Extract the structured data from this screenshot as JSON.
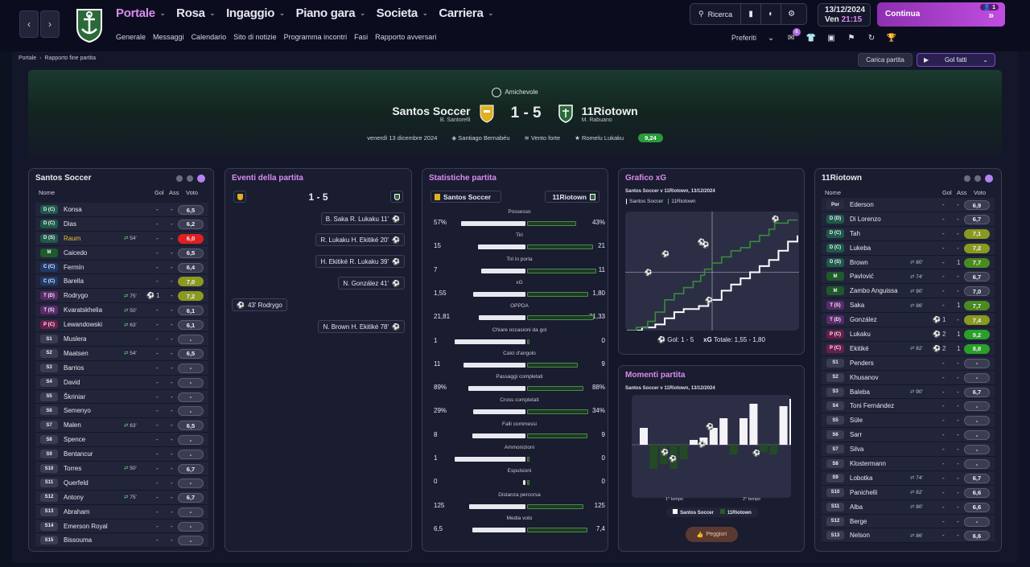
{
  "nav": {
    "menu": [
      {
        "label": "Portale",
        "active": true
      },
      {
        "label": "Rosa"
      },
      {
        "label": "Ingaggio"
      },
      {
        "label": "Piano gara"
      },
      {
        "label": "Societa"
      },
      {
        "label": "Carriera"
      }
    ],
    "submenu": [
      "Generale",
      "Messaggi",
      "Calendario",
      "Sito di notizie",
      "Programma incontri",
      "Fasi",
      "Rapporto avversari"
    ],
    "search": "Ricerca",
    "date": "13/12/2024",
    "day": "Ven",
    "time": "21:15",
    "continue": "Continua",
    "continue_badge": "1",
    "favorites": "Preferiti",
    "fav_badge": "6"
  },
  "breadcrumb": [
    "Portale",
    "Rapporto fine partita"
  ],
  "actions": {
    "load": "Carica partita",
    "goals": "Gol fatti"
  },
  "match": {
    "competition": "Amichevole",
    "home": "Santos Soccer",
    "home_manager": "B. Santorelli",
    "away": "11Riotown",
    "away_manager": "M. Rabuano",
    "score": "1 - 5",
    "date": "venerdì 13 dicembre 2024",
    "stadium": "Santiago Bernabéu",
    "weather": "Vento forte",
    "potm": "Romelu Lukaku",
    "potm_rating": "9,24"
  },
  "home_panel": {
    "title": "Santos Soccer",
    "headers": {
      "name": "Nome",
      "goals": "Gol",
      "assists": "Ass",
      "rating": "Voto"
    },
    "players": [
      {
        "pos": "D (C)",
        "pc": "#1e5a4a",
        "name": "Konsa",
        "sub": "",
        "g": "-",
        "a": "-",
        "r": "6,5",
        "rc": "#3a3d52"
      },
      {
        "pos": "D (C)",
        "pc": "#1e5a4a",
        "name": "Dias",
        "sub": "",
        "g": "-",
        "a": "-",
        "r": "6,2",
        "rc": "#3a3d52"
      },
      {
        "pos": "D (S)",
        "pc": "#1e5a4a",
        "name": "Raum",
        "nc": "#f0c030",
        "sub": "54'",
        "g": "-",
        "a": "-",
        "r": "6,0",
        "rc": "#e02020"
      },
      {
        "pos": "M",
        "pc": "#1e5a2a",
        "name": "Caicedo",
        "sub": "",
        "g": "-",
        "a": "-",
        "r": "6,5",
        "rc": "#3a3d52"
      },
      {
        "pos": "C (C)",
        "pc": "#1e3a6a",
        "name": "Fermín",
        "sub": "",
        "g": "-",
        "a": "-",
        "r": "6,4",
        "rc": "#3a3d52"
      },
      {
        "pos": "C (C)",
        "pc": "#1e3a6a",
        "name": "Barella",
        "sub": "",
        "g": "-",
        "a": "-",
        "r": "7,0",
        "rc": "#8a9a20"
      },
      {
        "pos": "T (D)",
        "pc": "#5a2a6a",
        "name": "Rodrygo",
        "sub": "75'",
        "goal": true,
        "g": "1",
        "a": "-",
        "r": "7,2",
        "rc": "#8a9a20"
      },
      {
        "pos": "T (S)",
        "pc": "#5a2a6a",
        "name": "Kvaratskhelia",
        "sub": "50'",
        "g": "-",
        "a": "-",
        "r": "6,1",
        "rc": "#3a3d52"
      },
      {
        "pos": "P (C)",
        "pc": "#6a1e4a",
        "name": "Lewandowski",
        "sub": "63'",
        "g": "-",
        "a": "-",
        "r": "6,1",
        "rc": "#3a3d52"
      },
      {
        "pos": "S1",
        "pc": "#3a3d52",
        "name": "Muslera",
        "sub": "",
        "g": "-",
        "a": "-",
        "r": "-",
        "rc": "#3a3d52"
      },
      {
        "pos": "S2",
        "pc": "#3a3d52",
        "name": "Maatsen",
        "sub": "54'",
        "g": "-",
        "a": "-",
        "r": "6,5",
        "rc": "#3a3d52"
      },
      {
        "pos": "S3",
        "pc": "#3a3d52",
        "name": "Barrios",
        "sub": "",
        "g": "-",
        "a": "-",
        "r": "-",
        "rc": "#3a3d52"
      },
      {
        "pos": "S4",
        "pc": "#3a3d52",
        "name": "David",
        "sub": "",
        "g": "-",
        "a": "-",
        "r": "-",
        "rc": "#3a3d52"
      },
      {
        "pos": "S5",
        "pc": "#3a3d52",
        "name": "Škriniar",
        "sub": "",
        "g": "-",
        "a": "-",
        "r": "-",
        "rc": "#3a3d52"
      },
      {
        "pos": "S6",
        "pc": "#3a3d52",
        "name": "Semenyo",
        "sub": "",
        "g": "-",
        "a": "-",
        "r": "-",
        "rc": "#3a3d52"
      },
      {
        "pos": "S7",
        "pc": "#3a3d52",
        "name": "Malen",
        "sub": "63'",
        "g": "-",
        "a": "-",
        "r": "6,5",
        "rc": "#3a3d52"
      },
      {
        "pos": "S8",
        "pc": "#3a3d52",
        "name": "Spence",
        "sub": "",
        "g": "-",
        "a": "-",
        "r": "-",
        "rc": "#3a3d52"
      },
      {
        "pos": "S9",
        "pc": "#3a3d52",
        "name": "Bentancur",
        "sub": "",
        "g": "-",
        "a": "-",
        "r": "-",
        "rc": "#3a3d52"
      },
      {
        "pos": "S10",
        "pc": "#3a3d52",
        "name": "Torres",
        "sub": "50'",
        "g": "-",
        "a": "-",
        "r": "6,7",
        "rc": "#3a3d52"
      },
      {
        "pos": "S11",
        "pc": "#3a3d52",
        "name": "Querfeld",
        "sub": "",
        "g": "-",
        "a": "-",
        "r": "-",
        "rc": "#3a3d52"
      },
      {
        "pos": "S12",
        "pc": "#3a3d52",
        "name": "Antony",
        "sub": "75'",
        "g": "-",
        "a": "-",
        "r": "6,7",
        "rc": "#3a3d52"
      },
      {
        "pos": "S13",
        "pc": "#3a3d52",
        "name": "Abraham",
        "sub": "",
        "g": "-",
        "a": "-",
        "r": "-",
        "rc": "#3a3d52"
      },
      {
        "pos": "S14",
        "pc": "#3a3d52",
        "name": "Emerson Royal",
        "sub": "",
        "g": "-",
        "a": "-",
        "r": "-",
        "rc": "#3a3d52"
      },
      {
        "pos": "S15",
        "pc": "#3a3d52",
        "name": "Bissouma",
        "sub": "",
        "g": "-",
        "a": "-",
        "r": "-",
        "rc": "#3a3d52"
      }
    ]
  },
  "events_panel": {
    "title": "Eventi della partita",
    "score": "1 - 5",
    "events": [
      {
        "side": "away",
        "text": "B. Saka  R. Lukaku 11'"
      },
      {
        "side": "away",
        "text": "R. Lukaku  H. Ekitiké 20'"
      },
      {
        "side": "away",
        "text": "H. Ekitiké  R. Lukaku 39'"
      },
      {
        "side": "away",
        "text": "N. González 41'"
      },
      {
        "side": "home",
        "text": "43'  Rodrygo"
      },
      {
        "side": "away",
        "text": "N. Brown  H. Ekitiké 78'"
      }
    ]
  },
  "stats_panel": {
    "title": "Statistiche partita",
    "home": "Santos Soccer",
    "away": "11Riotown",
    "stats": [
      {
        "label": "Possesso",
        "h": "57%",
        "a": "43%",
        "hv": 57,
        "av": 43
      },
      {
        "label": "Tiri",
        "h": "15",
        "a": "21",
        "hv": 15,
        "av": 21
      },
      {
        "label": "Tiri in porta",
        "h": "7",
        "a": "11",
        "hv": 7,
        "av": 11
      },
      {
        "label": "xG",
        "h": "1,55",
        "a": "1,80",
        "hv": 1.55,
        "av": 1.8
      },
      {
        "label": "OPPDA",
        "h": "21,81",
        "a": "31,33",
        "hv": 21.81,
        "av": 31.33
      },
      {
        "label": "Chiare occasioni da gol",
        "h": "1",
        "a": "0",
        "hv": 1,
        "av": 0
      },
      {
        "label": "Calci d'angolo",
        "h": "11",
        "a": "9",
        "hv": 11,
        "av": 9
      },
      {
        "label": "Passaggi completati",
        "h": "89%",
        "a": "88%",
        "hv": 89,
        "av": 88
      },
      {
        "label": "Cross completati",
        "h": "29%",
        "a": "34%",
        "hv": 29,
        "av": 34
      },
      {
        "label": "Falli commessi",
        "h": "8",
        "a": "9",
        "hv": 8,
        "av": 9
      },
      {
        "label": "Ammonizioni",
        "h": "1",
        "a": "0",
        "hv": 1,
        "av": 0
      },
      {
        "label": "Espulsioni",
        "h": "0",
        "a": "0",
        "hv": 0,
        "av": 0
      },
      {
        "label": "Distanza percorsa",
        "h": "125",
        "a": "125",
        "hv": 125,
        "av": 125
      },
      {
        "label": "Media voto",
        "h": "6,5",
        "a": "7,4",
        "hv": 6.5,
        "av": 7.4
      }
    ]
  },
  "xg_panel": {
    "title": "Grafico xG",
    "subtitle": "Santos Soccer v 11Riotown, 13/12/2024",
    "legend_home": "Santos Soccer",
    "legend_away": "11Riotown",
    "goals_label": "Gol: 1 - 5",
    "xg_label": "xG",
    "xg_total": "Totale: 1,55 - 1,80"
  },
  "moments_panel": {
    "title": "Momenti partita",
    "subtitle": "Santos Soccer v 11Riotown, 13/12/2024",
    "first_half": "1° tempo",
    "second_half": "2° tempo",
    "legend_home": "Santos Soccer",
    "legend_away": "11Riotown",
    "worst": "Peggiori"
  },
  "chart_data": [
    {
      "type": "line",
      "title": "Grafico xG",
      "series": [
        {
          "name": "Santos Soccer",
          "color": "#ffffff",
          "x": [
            0,
            8,
            15,
            20,
            25,
            30,
            38,
            43,
            50,
            55,
            60,
            65,
            70,
            75,
            80,
            85,
            90
          ],
          "y": [
            0,
            0.05,
            0.1,
            0.2,
            0.3,
            0.35,
            0.4,
            0.5,
            0.65,
            0.75,
            0.85,
            0.95,
            1.05,
            1.15,
            1.3,
            1.45,
            1.55
          ]
        },
        {
          "name": "11Riotown",
          "color": "#3a8a3a",
          "x": [
            0,
            5,
            11,
            15,
            20,
            25,
            30,
            35,
            39,
            41,
            45,
            50,
            55,
            60,
            65,
            70,
            75,
            78,
            85,
            90
          ],
          "y": [
            0,
            0.05,
            0.15,
            0.3,
            0.5,
            0.6,
            0.7,
            0.8,
            0.9,
            1.0,
            1.1,
            1.2,
            1.3,
            1.35,
            1.45,
            1.55,
            1.65,
            1.75,
            1.8,
            1.8
          ]
        }
      ],
      "ylim": [
        0,
        1.9
      ],
      "xlim": [
        0,
        90
      ]
    },
    {
      "type": "bar",
      "title": "Momenti partita",
      "series": [
        {
          "name": "Santos Soccer",
          "values": [
            0.35,
            0,
            0,
            0,
            0,
            0.1,
            0.15,
            0.35,
            0.55,
            0,
            0.55,
            0.85,
            0,
            0,
            0.8,
            0.95
          ]
        },
        {
          "name": "11Riotown",
          "values": [
            0,
            0.5,
            0.4,
            0.5,
            0.3,
            0,
            0,
            0,
            0,
            0.2,
            0,
            0,
            0.15,
            0.2,
            0,
            0
          ]
        }
      ]
    }
  ],
  "away_panel": {
    "title": "11Riotown",
    "headers": {
      "name": "Nome",
      "goals": "Gol",
      "assists": "Ass",
      "rating": "Voto"
    },
    "players": [
      {
        "pos": "Por",
        "pc": "#2a2c40",
        "name": "Ederson",
        "sub": "",
        "g": "-",
        "a": "-",
        "r": "6,9",
        "rc": "#3a3d52"
      },
      {
        "pos": "D (D)",
        "pc": "#1e5a4a",
        "name": "Di Lorenzo",
        "sub": "",
        "g": "-",
        "a": "-",
        "r": "6,7",
        "rc": "#3a3d52"
      },
      {
        "pos": "D (C)",
        "pc": "#1e5a4a",
        "name": "Tah",
        "sub": "",
        "g": "-",
        "a": "-",
        "r": "7,1",
        "rc": "#8a9a20"
      },
      {
        "pos": "D (C)",
        "pc": "#1e5a4a",
        "name": "Lukeba",
        "sub": "",
        "g": "-",
        "a": "-",
        "r": "7,2",
        "rc": "#8a9a20"
      },
      {
        "pos": "D (S)",
        "pc": "#1e5a4a",
        "name": "Brown",
        "sub": "80'",
        "g": "-",
        "a": "1",
        "r": "7,7",
        "rc": "#4a8a20"
      },
      {
        "pos": "M",
        "pc": "#1e5a2a",
        "name": "Pavlović",
        "sub": "74'",
        "g": "-",
        "a": "-",
        "r": "6,7",
        "rc": "#3a3d52"
      },
      {
        "pos": "M",
        "pc": "#1e5a2a",
        "name": "Zambo Anguissa",
        "sub": "90'",
        "g": "-",
        "a": "-",
        "r": "7,0",
        "rc": "#3a3d52"
      },
      {
        "pos": "T (S)",
        "pc": "#5a2a6a",
        "name": "Saka",
        "sub": "86'",
        "g": "-",
        "a": "1",
        "r": "7,7",
        "rc": "#4a8a20"
      },
      {
        "pos": "T (D)",
        "pc": "#5a2a6a",
        "name": "González",
        "sub": "",
        "goal": true,
        "g": "1",
        "a": "-",
        "r": "7,4",
        "rc": "#8a9a20"
      },
      {
        "pos": "P (C)",
        "pc": "#6a1e4a",
        "name": "Lukaku",
        "sub": "",
        "goal": true,
        "g": "2",
        "a": "1",
        "r": "9,2",
        "rc": "#2aa02a"
      },
      {
        "pos": "P (C)",
        "pc": "#6a1e4a",
        "name": "Ekitiké",
        "sub": "82'",
        "goal": true,
        "g": "2",
        "a": "1",
        "r": "8,8",
        "rc": "#2aa02a"
      },
      {
        "pos": "S1",
        "pc": "#3a3d52",
        "name": "Penders",
        "sub": "",
        "g": "-",
        "a": "-",
        "r": "-",
        "rc": "#3a3d52"
      },
      {
        "pos": "S2",
        "pc": "#3a3d52",
        "name": "Khusanov",
        "sub": "",
        "g": "-",
        "a": "-",
        "r": "-",
        "rc": "#3a3d52"
      },
      {
        "pos": "S3",
        "pc": "#3a3d52",
        "name": "Baleba",
        "sub": "90'",
        "g": "-",
        "a": "-",
        "r": "6,7",
        "rc": "#3a3d52"
      },
      {
        "pos": "S4",
        "pc": "#3a3d52",
        "name": "Toni Fernández",
        "sub": "",
        "g": "-",
        "a": "-",
        "r": "-",
        "rc": "#3a3d52"
      },
      {
        "pos": "S5",
        "pc": "#3a3d52",
        "name": "Süle",
        "sub": "",
        "g": "-",
        "a": "-",
        "r": "-",
        "rc": "#3a3d52"
      },
      {
        "pos": "S6",
        "pc": "#3a3d52",
        "name": "Sarr",
        "sub": "",
        "g": "-",
        "a": "-",
        "r": "-",
        "rc": "#3a3d52"
      },
      {
        "pos": "S7",
        "pc": "#3a3d52",
        "name": "Silva",
        "sub": "",
        "g": "-",
        "a": "-",
        "r": "-",
        "rc": "#3a3d52"
      },
      {
        "pos": "S8",
        "pc": "#3a3d52",
        "name": "Klostermann",
        "sub": "",
        "g": "-",
        "a": "-",
        "r": "-",
        "rc": "#3a3d52"
      },
      {
        "pos": "S9",
        "pc": "#3a3d52",
        "name": "Lobotka",
        "sub": "74'",
        "g": "-",
        "a": "-",
        "r": "6,7",
        "rc": "#3a3d52"
      },
      {
        "pos": "S10",
        "pc": "#3a3d52",
        "name": "Panichelli",
        "sub": "82'",
        "g": "-",
        "a": "-",
        "r": "6,6",
        "rc": "#3a3d52"
      },
      {
        "pos": "S11",
        "pc": "#3a3d52",
        "name": "Alba",
        "sub": "80'",
        "g": "-",
        "a": "-",
        "r": "6,6",
        "rc": "#3a3d52"
      },
      {
        "pos": "S12",
        "pc": "#3a3d52",
        "name": "Berge",
        "sub": "",
        "g": "-",
        "a": "-",
        "r": "-",
        "rc": "#3a3d52"
      },
      {
        "pos": "S13",
        "pc": "#3a3d52",
        "name": "Nelson",
        "sub": "86'",
        "g": "-",
        "a": "-",
        "r": "6,6",
        "rc": "#3a3d52"
      }
    ]
  }
}
